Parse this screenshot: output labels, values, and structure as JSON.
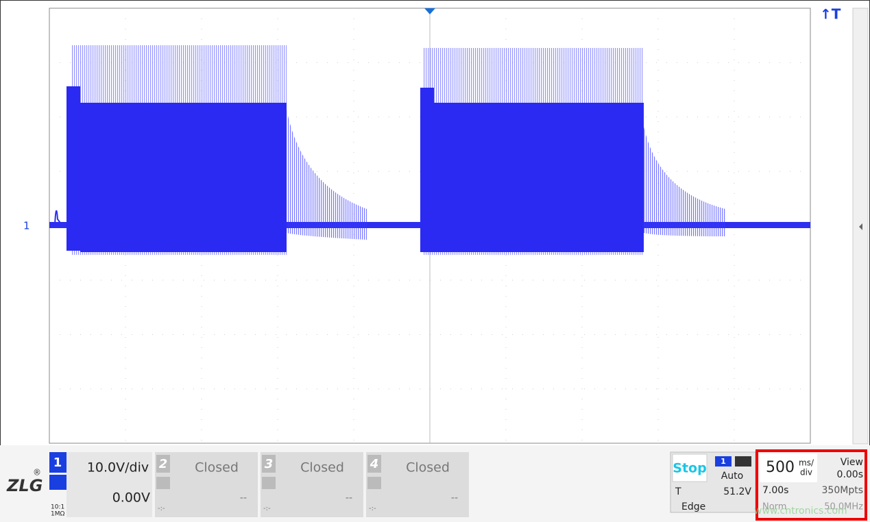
{
  "screen": {
    "trigger_marker": "↑T",
    "channel_marker": "1"
  },
  "logo": {
    "name": "ZLG",
    "mark": "®"
  },
  "channels": [
    {
      "number": "1",
      "scale": "10.0V/div",
      "offset": "0.00V",
      "probe": "10:1",
      "impedance": "1MΩ"
    },
    {
      "number": "2",
      "status": "Closed",
      "offset": "--",
      "position": "-:-"
    },
    {
      "number": "3",
      "status": "Closed",
      "offset": "--",
      "position": "-:-"
    },
    {
      "number": "4",
      "status": "Closed",
      "offset": "--",
      "position": "-:-"
    }
  ],
  "trigger": {
    "state": "Stop",
    "source": "1",
    "mode": "Auto",
    "label": "T",
    "level": "51.2V",
    "type": "Edge"
  },
  "timebase": {
    "value": "500",
    "unit_top": "ms/",
    "unit_bottom": "div",
    "view_label": "View",
    "view_value": "0.00s",
    "length": "7.00s",
    "memory": "350Mpts",
    "acq": "Norm",
    "bandwidth": "50.0MHz"
  },
  "watermark": "www.cntronics.com"
}
